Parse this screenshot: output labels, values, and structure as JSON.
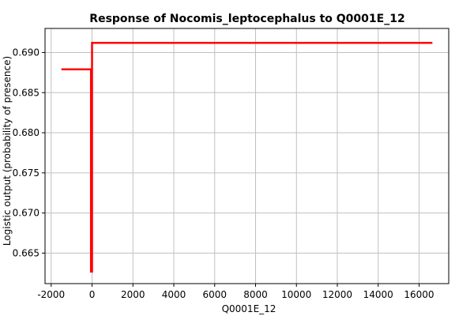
{
  "chart_data": {
    "type": "line",
    "title": "Response of Nocomis_leptocephalus to Q0001E_12",
    "xlabel": "Q0001E_12",
    "ylabel": "Logistic output (probability of presence)",
    "xlim": [
      -2300,
      17450
    ],
    "ylim": [
      0.6612,
      0.693
    ],
    "x_ticks": [
      -2000,
      0,
      2000,
      4000,
      6000,
      8000,
      10000,
      12000,
      14000,
      16000
    ],
    "x_tick_labels": [
      "-2000",
      "0",
      "2000",
      "4000",
      "6000",
      "8000",
      "10000",
      "12000",
      "14000",
      "16000"
    ],
    "y_ticks": [
      0.665,
      0.67,
      0.675,
      0.68,
      0.685,
      0.69
    ],
    "y_tick_labels": [
      "0.665",
      "0.670",
      "0.675",
      "0.680",
      "0.685",
      "0.690"
    ],
    "grid": true,
    "legend": "none",
    "series": [
      {
        "color": "#ff0000",
        "x": [
          -1500,
          -50,
          -50,
          0,
          0,
          16650
        ],
        "y": [
          0.6879,
          0.6879,
          0.6627,
          0.6627,
          0.6912,
          0.6912
        ]
      }
    ],
    "colors": {
      "background": "#ffffff",
      "plot_border": "#000000",
      "grid": "#c0c0c0",
      "line": "#ff0000"
    }
  }
}
